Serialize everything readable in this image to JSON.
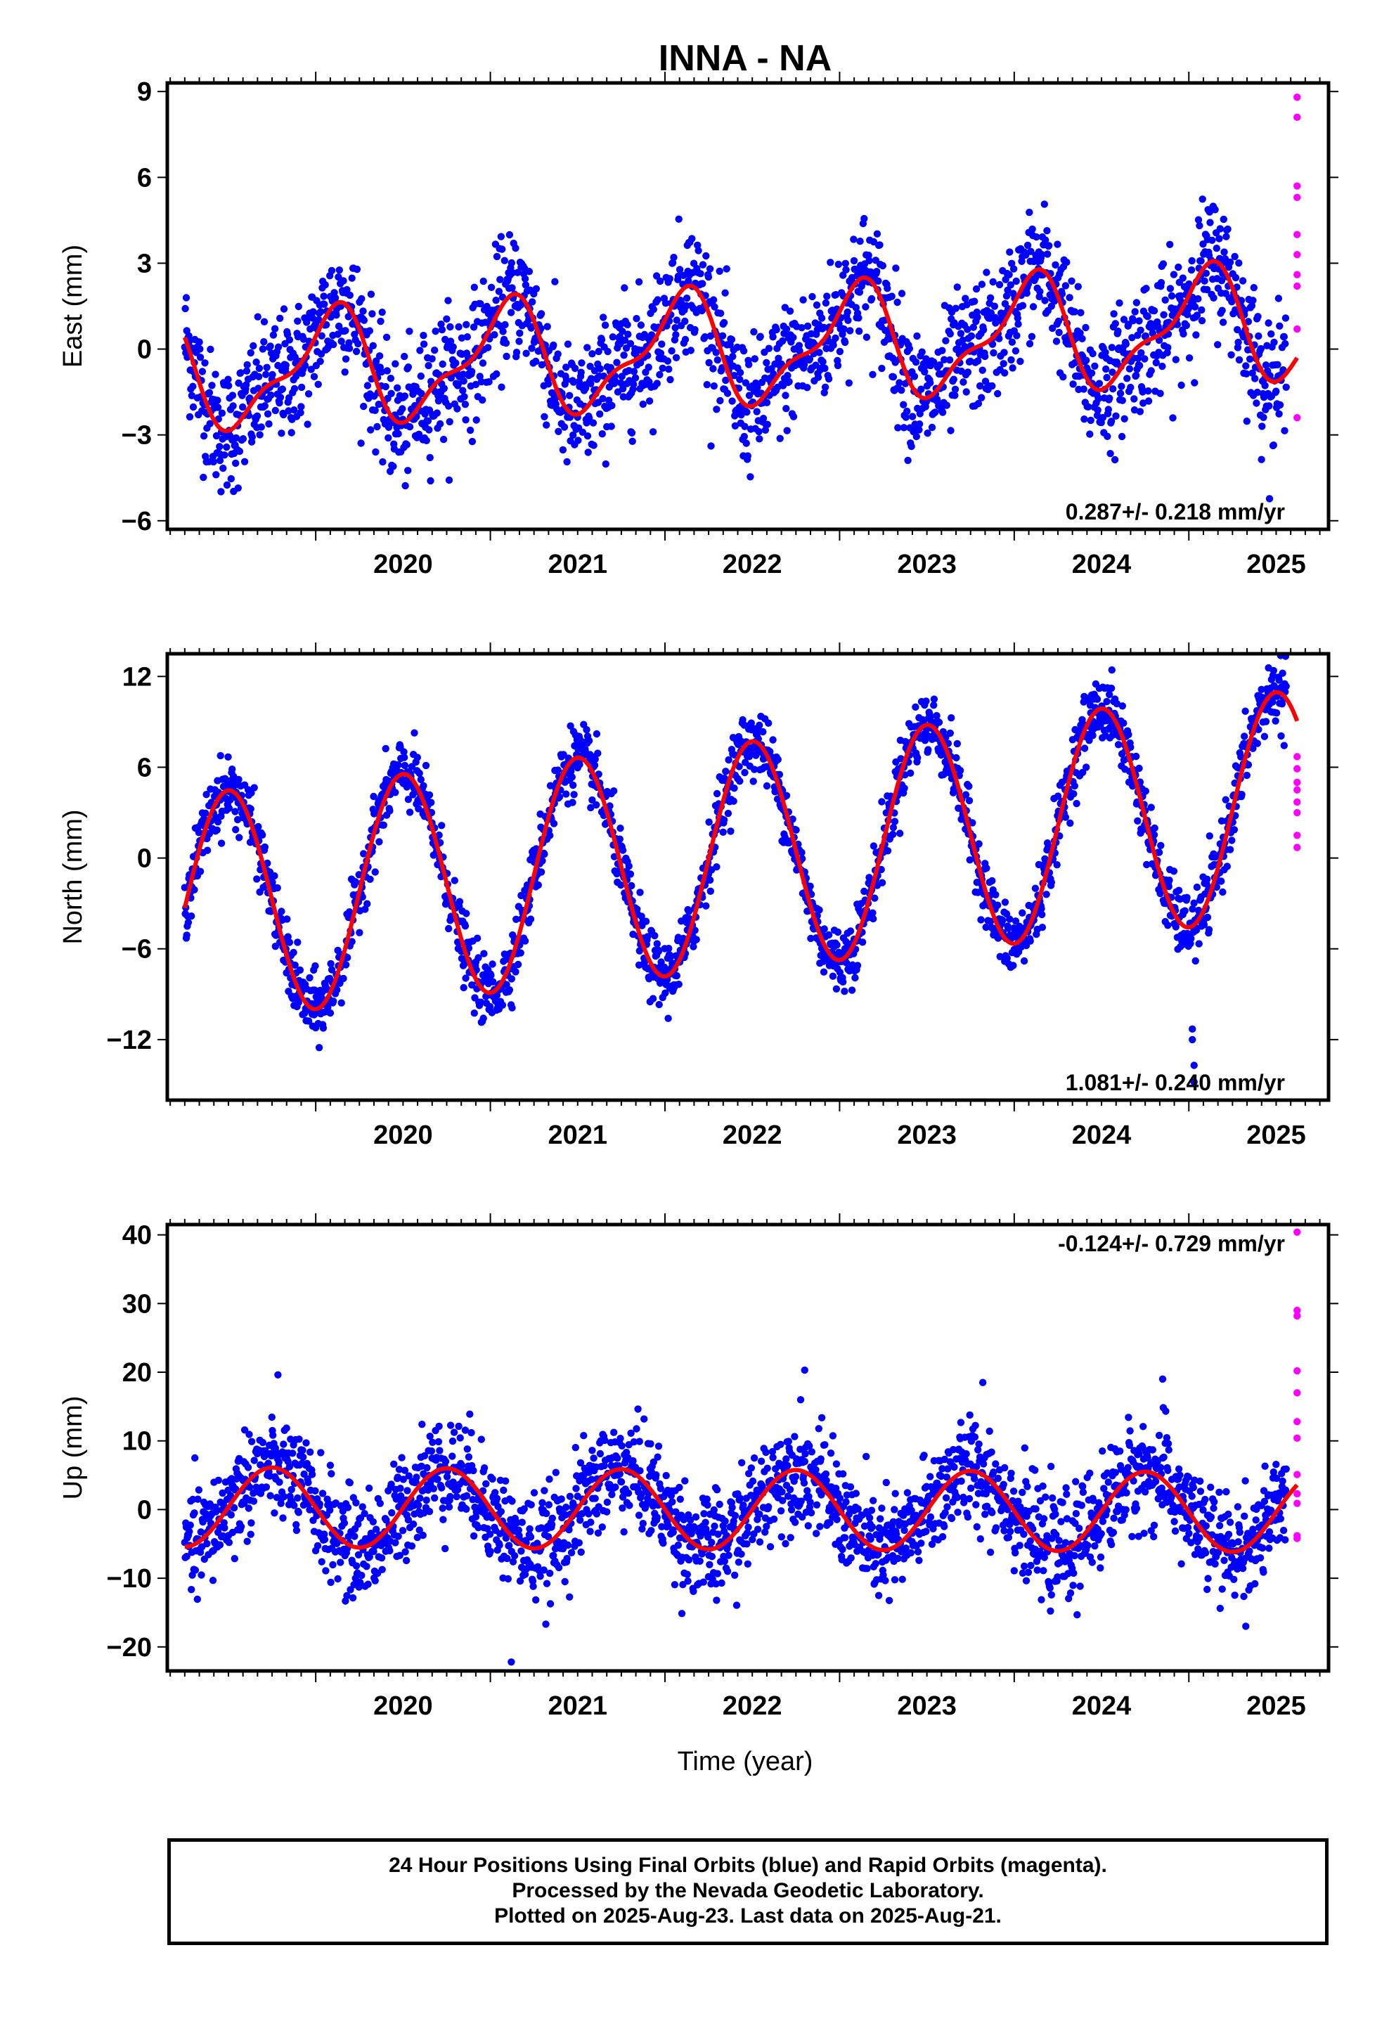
{
  "title": "INNA - NA",
  "xlabel": "Time (year)",
  "colors": {
    "final": "#0000ff",
    "rapid": "#ff00ff",
    "fit": "#ff0000"
  },
  "footer": [
    "24 Hour Positions Using Final Orbits (blue) and Rapid Orbits (magenta).",
    "Processed by the Nevada Geodetic Laboratory.",
    "Plotted on 2025-Aug-23. Last data on 2025-Aug-21."
  ],
  "chart_data": [
    {
      "type": "scatter",
      "title": "INNA - NA",
      "ylabel": "East (mm)",
      "xlabel": "",
      "xlim": [
        2019.15,
        2025.8
      ],
      "ylim": [
        -6.3,
        9.3
      ],
      "xticks": [
        2020,
        2021,
        2022,
        2023,
        2024,
        2025
      ],
      "yticks": [
        -6,
        -3,
        0,
        3,
        6,
        9
      ],
      "ytick_labels": [
        "−6",
        "−3",
        "0",
        "3",
        "6",
        "9"
      ],
      "rate": "0.287+/- 0.218 mm/yr",
      "rate_position": "bottom-right",
      "model": {
        "offset": 0.0,
        "trend": 0.287,
        "annual": 1.8,
        "annual_phase_peak": 0.08,
        "semi": 0.7,
        "t0": 2022.4
      },
      "rapid_values": [
        8.8,
        8.1,
        5.7,
        5.3,
        4.0,
        3.3,
        2.6,
        2.2,
        0.7,
        -2.4
      ],
      "series": [
        {
          "name": "Final Orbits",
          "x_start": 2019.25,
          "x_end": 2025.56,
          "scatter_mm": 1.1
        },
        {
          "name": "Rapid Orbits",
          "x": 2025.62
        },
        {
          "name": "Fit"
        }
      ]
    },
    {
      "type": "scatter",
      "ylabel": "North (mm)",
      "xlabel": "",
      "xlim": [
        2019.15,
        2025.8
      ],
      "ylim": [
        -16,
        13.5
      ],
      "xticks": [
        2020,
        2021,
        2022,
        2023,
        2024,
        2025
      ],
      "yticks": [
        -12,
        -6,
        0,
        6,
        12
      ],
      "ytick_labels": [
        "−12",
        "−6",
        "0",
        "6",
        "12"
      ],
      "rate": "1.081+/- 0.240 mm/yr",
      "rate_position": "bottom-right",
      "model": {
        "offset": 0.0,
        "trend": 1.081,
        "annual": 7.5,
        "annual_phase_peak": 0.5,
        "semi": 0.0,
        "t0": 2022.3
      },
      "outliers": [
        [
          2025.02,
          -11.3
        ],
        [
          2025.02,
          -12.0
        ],
        [
          2025.03,
          -13.7
        ],
        [
          2025.03,
          -14.8
        ]
      ],
      "rapid_values": [
        6.7,
        5.9,
        5.0,
        4.5,
        3.7,
        3.0,
        1.5,
        0.7
      ],
      "series": [
        {
          "name": "Final Orbits",
          "x_start": 2019.25,
          "x_end": 2025.56,
          "scatter_mm": 1.1
        },
        {
          "name": "Rapid Orbits",
          "x": 2025.62
        },
        {
          "name": "Fit"
        }
      ]
    },
    {
      "type": "scatter",
      "ylabel": "Up (mm)",
      "xlabel": "Time (year)",
      "xlim": [
        2019.15,
        2025.8
      ],
      "ylim": [
        -23.5,
        41.5
      ],
      "xticks": [
        2020,
        2021,
        2022,
        2023,
        2024,
        2025
      ],
      "yticks": [
        -20,
        -10,
        0,
        10,
        20,
        30,
        40
      ],
      "ytick_labels": [
        "−20",
        "−10",
        "0",
        "10",
        "20",
        "30",
        "40"
      ],
      "rate": "-0.124+/- 0.729 mm/yr",
      "rate_position": "top-right",
      "model": {
        "offset": 0.0,
        "trend": -0.124,
        "annual": 5.8,
        "annual_phase_peak": 0.75,
        "semi": 0.0,
        "t0": 2022.4
      },
      "outliers": [
        [
          2021.12,
          -22.2
        ],
        [
          2022.8,
          20.3
        ],
        [
          2024.85,
          19.0
        ],
        [
          2023.82,
          18.5
        ]
      ],
      "rapid_values": [
        40.4,
        29.0,
        28.2,
        20.2,
        17.0,
        12.8,
        10.4,
        5.1,
        2.3,
        0.9,
        -3.8,
        -4.2
      ],
      "series": [
        {
          "name": "Final Orbits",
          "x_start": 2019.25,
          "x_end": 2025.56,
          "scatter_mm": 3.8
        },
        {
          "name": "Rapid Orbits",
          "x": 2025.62
        },
        {
          "name": "Fit"
        }
      ]
    }
  ]
}
